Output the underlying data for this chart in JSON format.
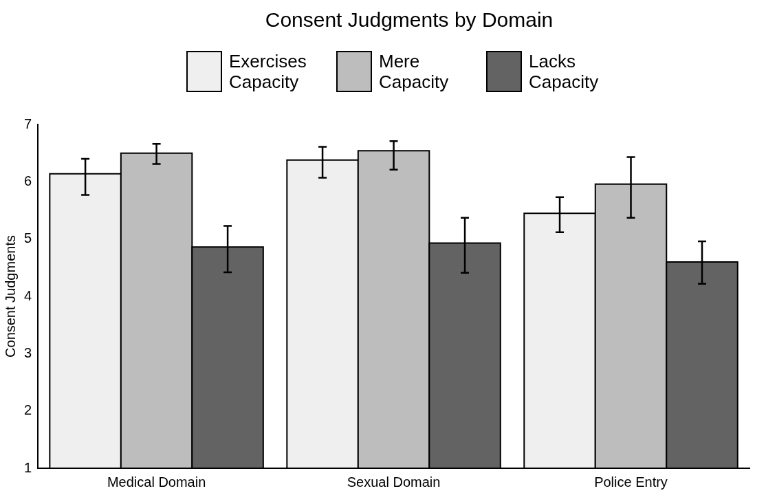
{
  "chart_data": {
    "type": "bar",
    "title": "Consent Judgments by Domain",
    "ylabel": "Consent Judgments",
    "categories": [
      "Medical Domain",
      "Sexual Domain",
      "Police Entry"
    ],
    "series": [
      {
        "name": "Exercises Capacity",
        "color": "#efefef",
        "values": [
          6.14,
          6.38,
          5.45
        ],
        "errors": [
          [
            5.77,
            6.4
          ],
          [
            6.07,
            6.61
          ],
          [
            5.12,
            5.73
          ]
        ]
      },
      {
        "name": "Mere Capacity",
        "color": "#bdbdbd",
        "values": [
          6.5,
          6.54,
          5.96
        ],
        "errors": [
          [
            6.31,
            6.66
          ],
          [
            6.21,
            6.71
          ],
          [
            5.37,
            6.43
          ]
        ]
      },
      {
        "name": "Lacks Capacity",
        "color": "#636363",
        "values": [
          4.86,
          4.93,
          4.6
        ],
        "errors": [
          [
            4.42,
            5.23
          ],
          [
            4.41,
            5.37
          ],
          [
            4.22,
            4.96
          ]
        ]
      }
    ],
    "ylim": [
      1,
      7
    ],
    "yticks": [
      1,
      2,
      3,
      4,
      5,
      6,
      7
    ],
    "grid": false,
    "legend": "top"
  }
}
